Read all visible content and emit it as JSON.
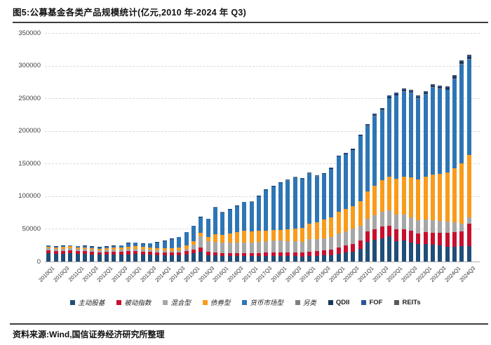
{
  "header": {
    "title": "图5:公募基金各类产品规模统计(亿元,2010 年-2024 年 Q3)"
  },
  "footer": {
    "source": "资料来源:Wind,国信证券经济研究所整理"
  },
  "chart_data": {
    "type": "bar",
    "stacked": true,
    "title": "公募基金各类产品规模统计(亿元,2010年-2024年Q3)",
    "xlabel": "",
    "ylabel": "",
    "ylim": [
      0,
      350000
    ],
    "y_ticks": [
      0,
      50000,
      100000,
      150000,
      200000,
      250000,
      300000,
      350000
    ],
    "grid": "dashed-horizontal",
    "legend_position": "bottom",
    "x_tick_labels": [
      "2010Q1",
      "2010Q3",
      "2011Q1",
      "2011Q3",
      "2012Q1",
      "2012Q3",
      "2013Q1",
      "2013Q3",
      "2014Q1",
      "2014Q3",
      "2015Q1",
      "2015Q3",
      "2016Q1",
      "2016Q3",
      "2017Q1",
      "2017Q3",
      "2018Q1",
      "2018Q3",
      "2019Q1",
      "2019Q3",
      "2020Q1",
      "2020Q3",
      "2021Q1",
      "2021Q3",
      "2022Q1",
      "2022Q3",
      "2023Q1",
      "2023Q3",
      "2024Q1",
      "2024Q3"
    ],
    "categories": [
      "2010Q1",
      "2010Q2",
      "2010Q3",
      "2010Q4",
      "2011Q1",
      "2011Q2",
      "2011Q3",
      "2011Q4",
      "2012Q1",
      "2012Q2",
      "2012Q3",
      "2012Q4",
      "2013Q1",
      "2013Q2",
      "2013Q3",
      "2013Q4",
      "2014Q1",
      "2014Q2",
      "2014Q3",
      "2014Q4",
      "2015Q1",
      "2015Q2",
      "2015Q3",
      "2015Q4",
      "2016Q1",
      "2016Q2",
      "2016Q3",
      "2016Q4",
      "2017Q1",
      "2017Q2",
      "2017Q3",
      "2017Q4",
      "2018Q1",
      "2018Q2",
      "2018Q3",
      "2018Q4",
      "2019Q1",
      "2019Q2",
      "2019Q3",
      "2019Q4",
      "2020Q1",
      "2020Q2",
      "2020Q3",
      "2020Q4",
      "2021Q1",
      "2021Q2",
      "2021Q3",
      "2021Q4",
      "2022Q1",
      "2022Q2",
      "2022Q3",
      "2022Q4",
      "2023Q1",
      "2023Q2",
      "2023Q3",
      "2023Q4",
      "2024Q1",
      "2024Q2",
      "2024Q3"
    ],
    "series": [
      {
        "name": "主动股基",
        "color": "#1F4E79",
        "values": [
          13000,
          11900,
          12300,
          12700,
          11700,
          11800,
          11100,
          10300,
          10700,
          10900,
          10600,
          11200,
          11300,
          10700,
          10400,
          10000,
          9700,
          9500,
          9800,
          10600,
          12500,
          15000,
          10000,
          9700,
          8900,
          8700,
          8500,
          8300,
          8200,
          8400,
          8600,
          8800,
          8600,
          8300,
          8100,
          7700,
          8700,
          8800,
          9300,
          10100,
          12000,
          13500,
          15500,
          19500,
          30000,
          33600,
          35400,
          38300,
          31500,
          31900,
          29500,
          26500,
          27000,
          26000,
          24500,
          23000,
          22900,
          23600,
          24000
        ]
      },
      {
        "name": "被动指数",
        "color": "#C8102E",
        "values": [
          4300,
          4100,
          4300,
          4500,
          4300,
          4400,
          4200,
          4000,
          4300,
          4400,
          4300,
          4700,
          4800,
          4500,
          4400,
          4300,
          4200,
          4100,
          4400,
          5100,
          6300,
          7000,
          5000,
          4500,
          4200,
          4200,
          4300,
          4400,
          4400,
          4600,
          4900,
          5200,
          5300,
          5400,
          5600,
          5800,
          6800,
          7100,
          7800,
          8600,
          10000,
          10800,
          11500,
          13000,
          16000,
          16100,
          18600,
          16800,
          17500,
          17800,
          17500,
          17000,
          17800,
          18500,
          19500,
          20500,
          22500,
          22200,
          33700
        ]
      },
      {
        "name": "混合型",
        "color": "#A6A6A6",
        "values": [
          3200,
          3100,
          3200,
          3300,
          3200,
          3200,
          3100,
          3000,
          3100,
          3200,
          3100,
          3300,
          3300,
          3200,
          3100,
          3000,
          3000,
          3000,
          3100,
          3500,
          6500,
          17000,
          16000,
          16000,
          15600,
          15800,
          16200,
          16400,
          16200,
          16700,
          17400,
          17900,
          18100,
          17700,
          17400,
          16800,
          18400,
          18200,
          18700,
          19400,
          20500,
          22000,
          23500,
          22000,
          19600,
          21500,
          22500,
          23300,
          22500,
          22000,
          20500,
          19500,
          19500,
          19000,
          18200,
          17500,
          15000,
          12500,
          10000
        ]
      },
      {
        "name": "债券型",
        "color": "#F99B1B",
        "values": [
          2600,
          2500,
          2600,
          2700,
          2600,
          2600,
          2500,
          2400,
          2500,
          2800,
          3000,
          3800,
          4000,
          3900,
          3600,
          3300,
          3300,
          3800,
          4300,
          5200,
          5700,
          5200,
          6200,
          11500,
          12600,
          14200,
          16600,
          18100,
          17600,
          17100,
          16600,
          16100,
          16600,
          17600,
          18900,
          21600,
          24600,
          26600,
          28600,
          30100,
          33500,
          34000,
          34000,
          38000,
          42000,
          45000,
          48000,
          52000,
          55000,
          58000,
          61000,
          63000,
          66000,
          70000,
          72000,
          75000,
          82300,
          92000,
          95500
        ]
      },
      {
        "name": "货币市场型",
        "color": "#2E75B6",
        "values": [
          1200,
          1100,
          1200,
          1300,
          1500,
          1600,
          1700,
          1900,
          2100,
          2600,
          3300,
          4900,
          5100,
          4900,
          6300,
          8700,
          10900,
          13900,
          15500,
          20300,
          23300,
          23800,
          27800,
          41500,
          34400,
          36300,
          39400,
          43600,
          45300,
          52800,
          62300,
          67200,
          71600,
          75000,
          79200,
          75000,
          76200,
          69700,
          69600,
          73700,
          84700,
          84000,
          86500,
          99400,
          99900,
          106500,
          106500,
          119500,
          127500,
          130500,
          129500,
          123000,
          125500,
          133000,
          130000,
          126800,
          137000,
          151500,
          146500
        ]
      },
      {
        "name": "另类",
        "color": "#7F7F7F",
        "values": [
          0,
          0,
          0,
          0,
          0,
          0,
          0,
          0,
          0,
          0,
          0,
          0,
          0,
          0,
          0,
          0,
          0,
          0,
          0,
          0,
          100,
          100,
          100,
          100,
          200,
          200,
          200,
          200,
          200,
          200,
          200,
          200,
          300,
          300,
          300,
          300,
          300,
          300,
          300,
          300,
          300,
          300,
          300,
          300,
          500,
          500,
          600,
          600,
          700,
          700,
          700,
          800,
          800,
          800,
          800,
          800,
          900,
          900,
          900
        ]
      },
      {
        "name": "QDII",
        "color": "#17375E",
        "values": [
          700,
          700,
          700,
          700,
          700,
          700,
          700,
          700,
          700,
          700,
          700,
          700,
          700,
          700,
          700,
          700,
          700,
          700,
          700,
          700,
          700,
          800,
          700,
          700,
          800,
          800,
          800,
          800,
          800,
          800,
          800,
          800,
          800,
          800,
          800,
          800,
          800,
          800,
          800,
          800,
          1000,
          1100,
          1300,
          1400,
          1500,
          1600,
          1600,
          1700,
          1700,
          1700,
          1600,
          1700,
          1900,
          2100,
          2300,
          2500,
          2800,
          3100,
          3300
        ]
      },
      {
        "name": "FOF",
        "color": "#2C5697",
        "values": [
          0,
          0,
          0,
          0,
          0,
          0,
          0,
          0,
          0,
          0,
          0,
          0,
          0,
          0,
          0,
          0,
          0,
          0,
          0,
          0,
          0,
          0,
          0,
          0,
          0,
          0,
          0,
          0,
          0,
          0,
          0,
          100,
          100,
          200,
          200,
          200,
          300,
          400,
          400,
          500,
          400,
          500,
          700,
          900,
          1100,
          1600,
          2000,
          2200,
          2300,
          2100,
          2000,
          1900,
          1800,
          1700,
          1600,
          1500,
          1400,
          1400,
          1400
        ]
      },
      {
        "name": "REITs",
        "color": "#595959",
        "values": [
          0,
          0,
          0,
          0,
          0,
          0,
          0,
          0,
          0,
          0,
          0,
          0,
          0,
          0,
          0,
          0,
          0,
          0,
          0,
          0,
          0,
          0,
          0,
          0,
          0,
          0,
          0,
          0,
          0,
          0,
          0,
          0,
          0,
          0,
          0,
          0,
          0,
          0,
          0,
          0,
          0,
          0,
          0,
          0,
          0,
          400,
          400,
          500,
          500,
          600,
          700,
          800,
          900,
          900,
          1000,
          1000,
          1100,
          1200,
          1300
        ]
      }
    ]
  }
}
